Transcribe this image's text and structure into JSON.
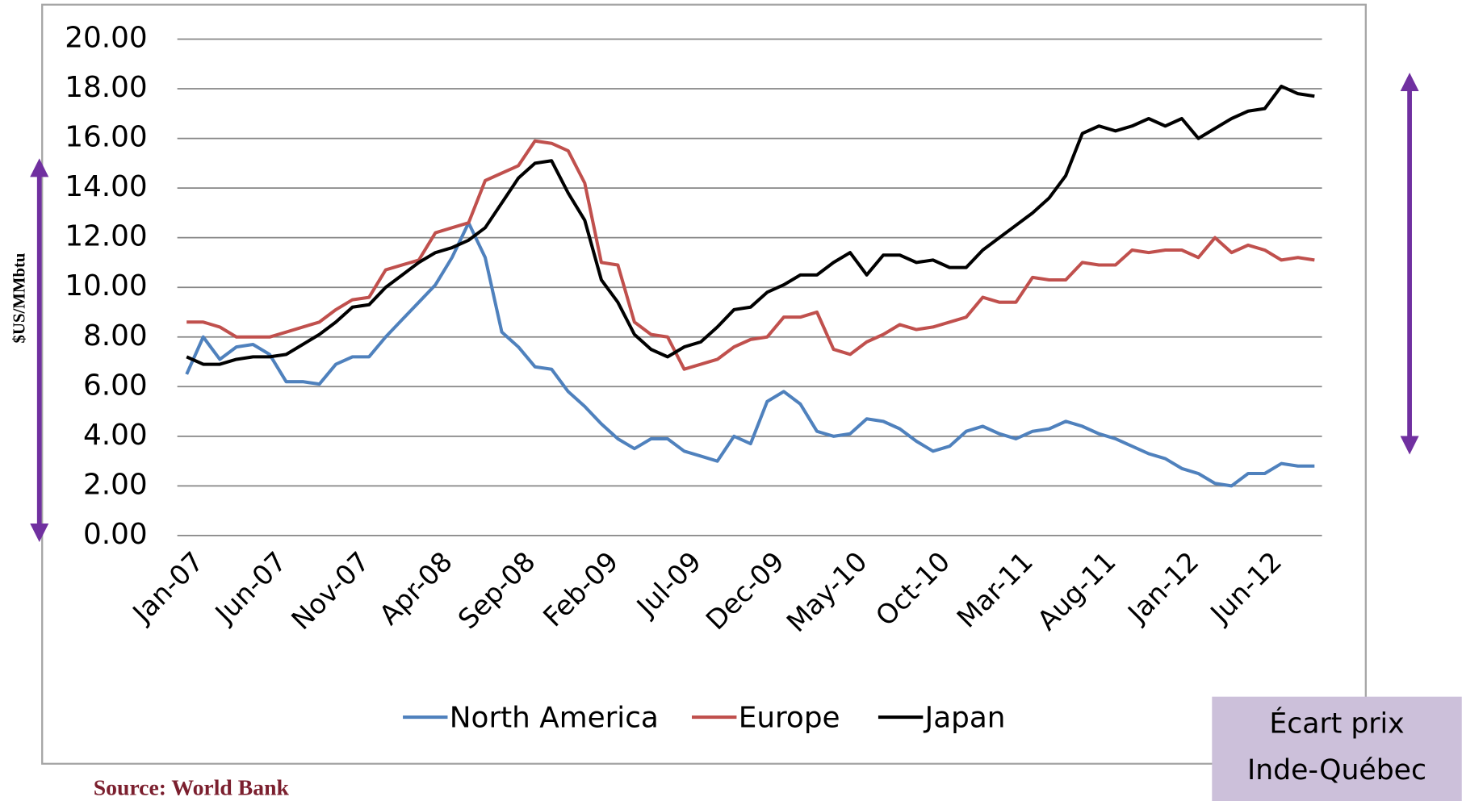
{
  "chart_data": {
    "type": "line",
    "y_label": "$US/MMbtu",
    "source": "Source: World Bank",
    "annotation": [
      "Écart prix",
      "Inde-Québec"
    ],
    "categories": [
      "Jan-07",
      null,
      null,
      null,
      null,
      "Jun-07",
      null,
      null,
      null,
      null,
      "Nov-07",
      null,
      null,
      null,
      null,
      "Apr-08",
      null,
      null,
      null,
      null,
      "Sep-08",
      null,
      null,
      null,
      null,
      "Feb-09",
      null,
      null,
      null,
      null,
      "Jul-09",
      null,
      null,
      null,
      null,
      "Dec-09",
      null,
      null,
      null,
      null,
      "May-10",
      null,
      null,
      null,
      null,
      "Oct-10",
      null,
      null,
      null,
      null,
      "Mar-11",
      null,
      null,
      null,
      null,
      "Aug-11",
      null,
      null,
      null,
      null,
      "Jan-12",
      null,
      null,
      null,
      null,
      "Jun-12",
      null,
      null,
      null
    ],
    "series": [
      {
        "name": "North America",
        "color": "#4f81bd",
        "values": [
          6.5,
          8.0,
          7.1,
          7.6,
          7.7,
          7.3,
          6.2,
          6.2,
          6.1,
          6.9,
          7.2,
          7.2,
          8.0,
          8.7,
          9.4,
          10.1,
          11.2,
          12.6,
          11.2,
          8.2,
          7.6,
          6.8,
          6.7,
          5.8,
          5.2,
          4.5,
          3.9,
          3.5,
          3.9,
          3.9,
          3.4,
          3.2,
          3.0,
          4.0,
          3.7,
          5.4,
          5.8,
          5.3,
          4.2,
          4.0,
          4.1,
          4.7,
          4.6,
          4.3,
          3.8,
          3.4,
          3.6,
          4.2,
          4.4,
          4.1,
          3.9,
          4.2,
          4.3,
          4.6,
          4.4,
          4.1,
          3.9,
          3.6,
          3.3,
          3.1,
          2.7,
          2.5,
          2.1,
          2.0,
          2.5,
          2.5,
          2.9,
          2.8,
          2.8
        ]
      },
      {
        "name": "Europe",
        "color": "#c0504d",
        "values": [
          8.6,
          8.6,
          8.4,
          8.0,
          8.0,
          8.0,
          8.2,
          8.4,
          8.6,
          9.1,
          9.5,
          9.6,
          10.7,
          10.9,
          11.1,
          12.2,
          12.4,
          12.6,
          14.3,
          14.6,
          14.9,
          15.9,
          15.8,
          15.5,
          14.2,
          11.0,
          10.9,
          8.6,
          8.1,
          8.0,
          6.7,
          6.9,
          7.1,
          7.6,
          7.9,
          8.0,
          8.8,
          8.8,
          9.0,
          7.5,
          7.3,
          7.8,
          8.1,
          8.5,
          8.3,
          8.4,
          8.6,
          8.8,
          9.6,
          9.4,
          9.4,
          10.4,
          10.3,
          10.3,
          11.0,
          10.9,
          10.9,
          11.5,
          11.4,
          11.5,
          11.5,
          11.2,
          12.0,
          11.4,
          11.7,
          11.5,
          11.1,
          11.2,
          11.1
        ]
      },
      {
        "name": "Japan",
        "color": "#000000",
        "values": [
          7.2,
          6.9,
          6.9,
          7.1,
          7.2,
          7.2,
          7.3,
          7.7,
          8.1,
          8.6,
          9.2,
          9.3,
          10.0,
          10.5,
          11.0,
          11.4,
          11.6,
          11.9,
          12.4,
          13.4,
          14.4,
          15.0,
          15.1,
          13.8,
          12.7,
          10.3,
          9.4,
          8.1,
          7.5,
          7.2,
          7.6,
          7.8,
          8.4,
          9.1,
          9.2,
          9.8,
          10.1,
          10.5,
          10.5,
          11.0,
          11.4,
          10.5,
          11.3,
          11.3,
          11.0,
          11.1,
          10.8,
          10.8,
          11.5,
          12.0,
          12.5,
          13.0,
          13.6,
          14.5,
          16.2,
          16.5,
          16.3,
          16.5,
          16.8,
          16.5,
          16.8,
          16.0,
          16.4,
          16.8,
          17.1,
          17.2,
          18.1,
          17.8,
          17.7
        ]
      }
    ],
    "ylim": [
      0,
      20
    ],
    "yticks": [
      {
        "value": 0,
        "label": "0.00"
      },
      {
        "value": 2,
        "label": "2.00"
      },
      {
        "value": 4,
        "label": "4.00"
      },
      {
        "value": 6,
        "label": "6.00"
      },
      {
        "value": 8,
        "label": "8.00"
      },
      {
        "value": 10,
        "label": "10.00"
      },
      {
        "value": 12,
        "label": "12.00"
      },
      {
        "value": 14,
        "label": "14.00"
      },
      {
        "value": 16,
        "label": "16.00"
      },
      {
        "value": 18,
        "label": "18.00"
      },
      {
        "value": 20,
        "label": "20.00"
      }
    ],
    "grid": true
  }
}
